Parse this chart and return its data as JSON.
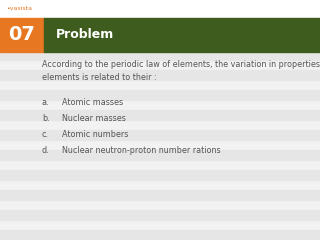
{
  "bg_color": "#f2f2f2",
  "stripe_color": "#e6e6e6",
  "header_bg_color": "#3d5c1e",
  "number_bg_color": "#e87722",
  "number_text": "07",
  "header_text": "Problem",
  "question_line1": "According to the periodic law of elements, the variation in properties of",
  "question_line2": "elements is related to their :",
  "options": [
    "Atomic masses",
    "Nuclear masses",
    "Atomic numbers",
    "Nuclear neutron-proton number rations"
  ],
  "option_labels": [
    "a.",
    "b.",
    "c.",
    "d."
  ],
  "header_font_size": 9,
  "number_font_size": 14,
  "question_font_size": 5.8,
  "option_font_size": 5.8,
  "text_color": "#555555",
  "header_text_color": "#ffffff",
  "number_text_color": "#ffffff",
  "logo_color": "#e87722",
  "logo_font_size": 4.5
}
